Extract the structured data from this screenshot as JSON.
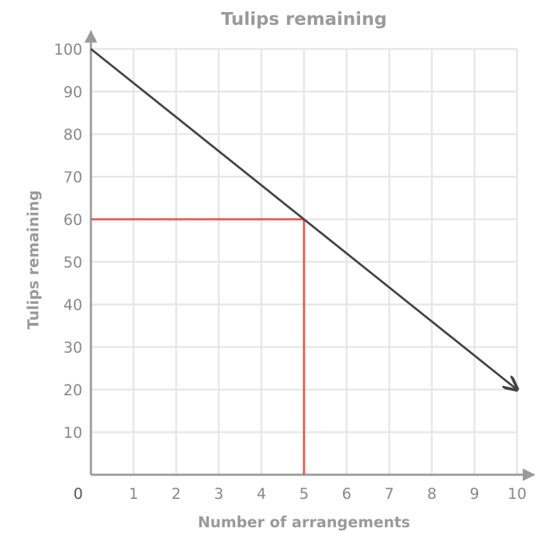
{
  "chart_data": {
    "type": "line",
    "title": "Tulips remaining",
    "xlabel": "Number of arrangements",
    "ylabel": "Tulips remaining",
    "xlim": [
      0,
      10
    ],
    "ylim": [
      0,
      100
    ],
    "x_ticks": [
      "0",
      "1",
      "2",
      "3",
      "4",
      "5",
      "6",
      "7",
      "8",
      "9",
      "10"
    ],
    "y_ticks": [
      "10",
      "20",
      "30",
      "40",
      "50",
      "60",
      "70",
      "80",
      "90",
      "100"
    ],
    "grid": true,
    "series": [
      {
        "x": [
          0,
          10
        ],
        "y": [
          100,
          20
        ],
        "color": "#444444",
        "end_arrow": true
      }
    ],
    "guide_point": {
      "x": 5,
      "y": 60,
      "color": "#e05a4f"
    },
    "colors": {
      "axis": "#9a9a9a",
      "grid": "#e6e6e6",
      "text": "#9a9a9a"
    }
  }
}
